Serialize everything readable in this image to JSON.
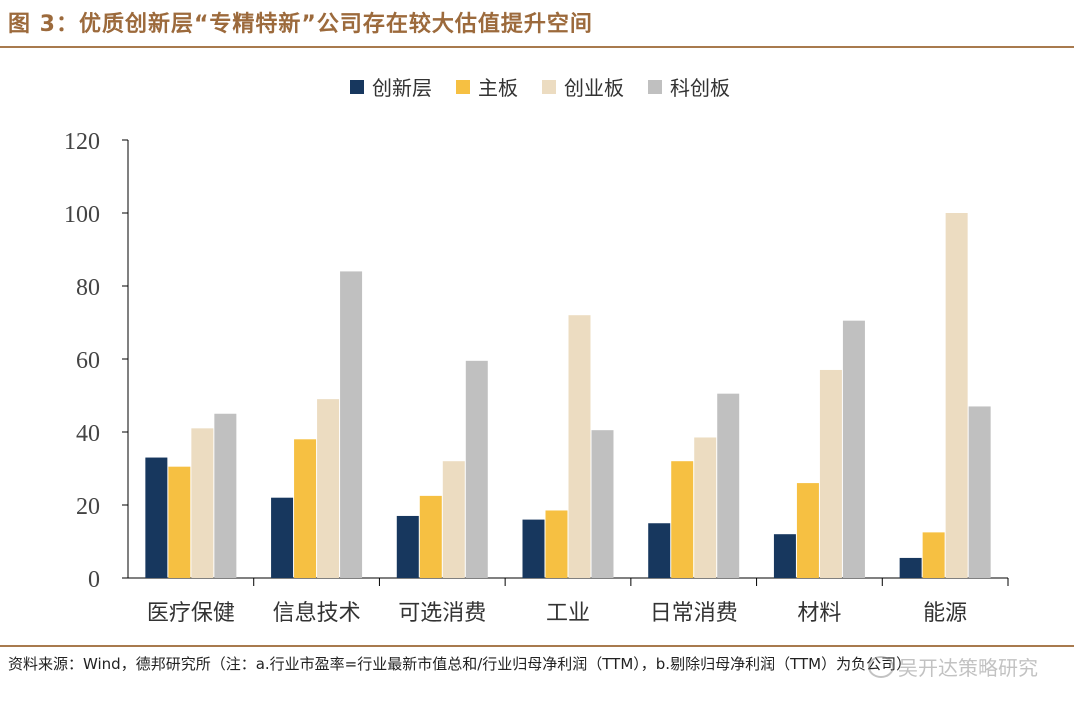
{
  "figure": {
    "title": "图 3：优质创新层“专精特新”公司存在较大估值提升空间",
    "source": "资料来源：Wind，德邦研究所（注：a.行业市盈率=行业最新市值总和/行业归母净利润（TTM），b.剔除归母净利润（TTM）为负公司）",
    "watermark": "吴开达策略研究"
  },
  "chart_data": {
    "type": "bar",
    "title": "",
    "xlabel": "",
    "ylabel": "",
    "ylim": [
      0,
      120
    ],
    "yticks": [
      0,
      20,
      40,
      60,
      80,
      100,
      120
    ],
    "grid": false,
    "legend_position": "top-center",
    "categories": [
      "医疗保健",
      "信息技术",
      "可选消费",
      "工业",
      "日常消费",
      "材料",
      "能源"
    ],
    "series": [
      {
        "name": "创新层",
        "color": "#17375e",
        "values": [
          33,
          22,
          17,
          16,
          15,
          12,
          5.5
        ]
      },
      {
        "name": "主板",
        "color": "#f6c042",
        "values": [
          30.5,
          38,
          22.5,
          18.5,
          32,
          26,
          12.5
        ]
      },
      {
        "name": "创业板",
        "color": "#ecdcc1",
        "values": [
          41,
          49,
          32,
          72,
          38.5,
          57,
          100
        ]
      },
      {
        "name": "科创板",
        "color": "#c0c0c0",
        "values": [
          45,
          84,
          59.5,
          40.5,
          50.5,
          70.5,
          47
        ]
      }
    ]
  }
}
